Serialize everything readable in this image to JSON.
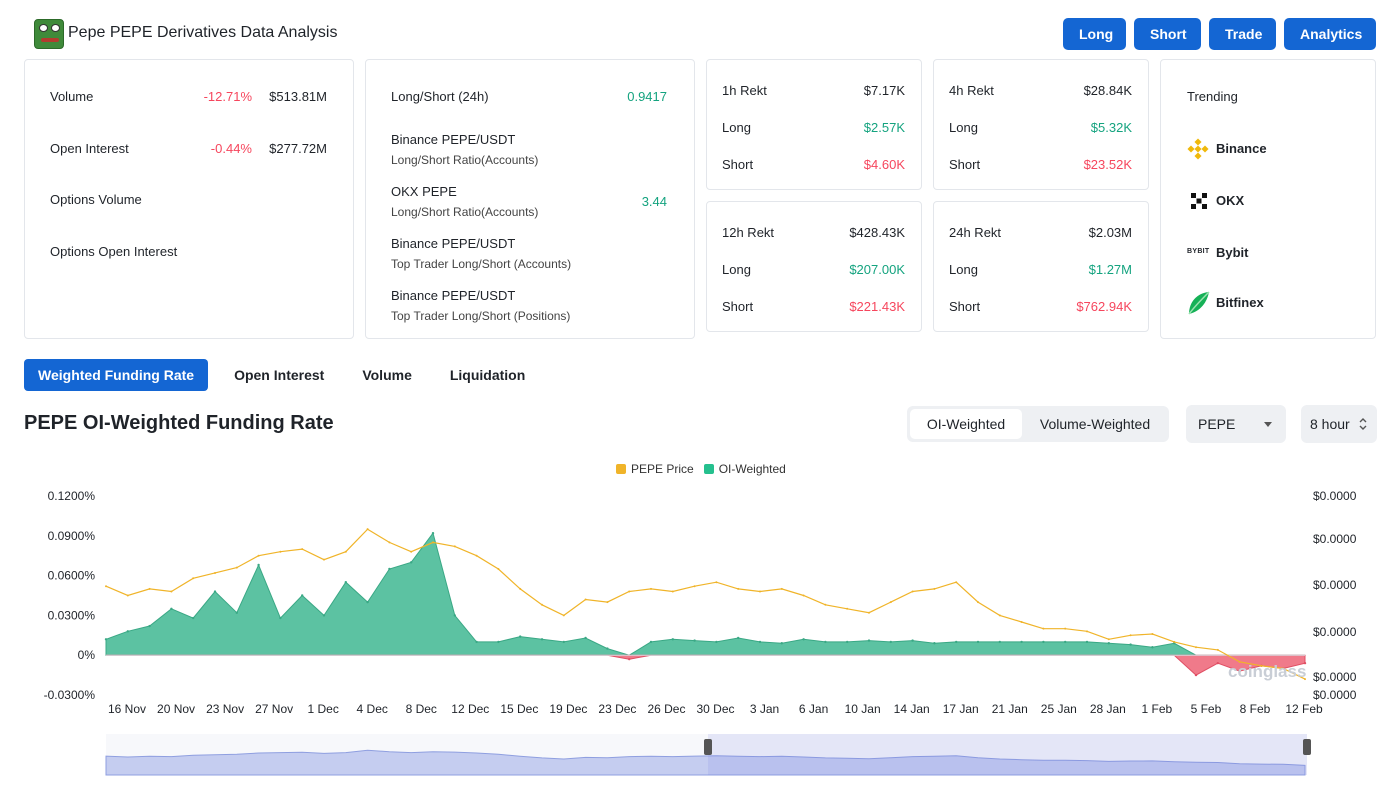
{
  "header": {
    "title": "Pepe PEPE Derivatives Data Analysis",
    "buttons": [
      "Long",
      "Short",
      "Trade",
      "Analytics"
    ]
  },
  "stats_card": {
    "rows": [
      {
        "label": "Volume",
        "change": "-12.71%",
        "value": "$513.81M"
      },
      {
        "label": "Open Interest",
        "change": "-0.44%",
        "value": "$277.72M"
      },
      {
        "label": "Options Volume",
        "change": "",
        "value": ""
      },
      {
        "label": "Options Open Interest",
        "change": "",
        "value": ""
      }
    ]
  },
  "ratio_card": {
    "rows": [
      {
        "line1": "Long/Short (24h)",
        "line2": "",
        "value": "0.9417"
      },
      {
        "line1": "Binance PEPE/USDT",
        "line2": "Long/Short Ratio(Accounts)",
        "value": ""
      },
      {
        "line1": "OKX PEPE",
        "line2": "Long/Short Ratio(Accounts)",
        "value": "3.44"
      },
      {
        "line1": "Binance PEPE/USDT",
        "line2": "Top Trader Long/Short (Accounts)",
        "value": ""
      },
      {
        "line1": "Binance PEPE/USDT",
        "line2": "Top Trader Long/Short (Positions)",
        "value": ""
      }
    ]
  },
  "rekt": [
    {
      "title": "1h Rekt",
      "total": "$7.17K",
      "long_label": "Long",
      "long": "$2.57K",
      "short_label": "Short",
      "short": "$4.60K"
    },
    {
      "title": "4h Rekt",
      "total": "$28.84K",
      "long_label": "Long",
      "long": "$5.32K",
      "short_label": "Short",
      "short": "$23.52K"
    },
    {
      "title": "12h Rekt",
      "total": "$428.43K",
      "long_label": "Long",
      "long": "$207.00K",
      "short_label": "Short",
      "short": "$221.43K"
    },
    {
      "title": "24h Rekt",
      "total": "$2.03M",
      "long_label": "Long",
      "long": "$1.27M",
      "short_label": "Short",
      "short": "$762.94K"
    }
  ],
  "trending": {
    "title": "Trending",
    "items": [
      {
        "name": "Binance",
        "icon": "binance-icon"
      },
      {
        "name": "OKX",
        "icon": "okx-icon"
      },
      {
        "name": "Bybit",
        "icon": "bybit-icon",
        "icon_text": "BYBIT"
      },
      {
        "name": "Bitfinex",
        "icon": "bitfinex-icon"
      }
    ]
  },
  "tabs": [
    "Weighted Funding Rate",
    "Open Interest",
    "Volume",
    "Liquidation"
  ],
  "chart_section": {
    "title": "PEPE OI-Weighted Funding Rate",
    "segment": [
      "OI-Weighted",
      "Volume-Weighted"
    ],
    "coin_select": "PEPE",
    "interval_select": "8 hour",
    "watermark": "coinglass"
  },
  "colors": {
    "accent": "#1466d3",
    "positive": "#14a37f",
    "negative": "#f6465d",
    "price_line": "#f0b429",
    "oi_fill": "#3fb68b"
  },
  "chart_data": {
    "type": "area",
    "title": "",
    "legend": [
      "PEPE Price",
      "OI-Weighted"
    ],
    "legend_position": "top-center",
    "x_ticks": [
      "16 Nov",
      "20 Nov",
      "23 Nov",
      "27 Nov",
      "1 Dec",
      "4 Dec",
      "8 Dec",
      "12 Dec",
      "15 Dec",
      "19 Dec",
      "23 Dec",
      "26 Dec",
      "30 Dec",
      "3 Jan",
      "6 Jan",
      "10 Jan",
      "14 Jan",
      "17 Jan",
      "21 Jan",
      "25 Jan",
      "28 Jan",
      "1 Feb",
      "5 Feb",
      "8 Feb",
      "12 Feb"
    ],
    "y_left_ticks": [
      "0.1200%",
      "0.0900%",
      "0.0600%",
      "0.0300%",
      "0%",
      "-0.0300%"
    ],
    "y_left_range": [
      -0.03,
      0.12
    ],
    "y_right_ticks": [
      "$0.0000",
      "$0.0000",
      "$0.0000",
      "$0.0000",
      "$0.0000",
      "$0.0000"
    ],
    "grid": false,
    "series": [
      {
        "name": "OI-Weighted",
        "values": [
          0.012,
          0.018,
          0.022,
          0.035,
          0.028,
          0.048,
          0.032,
          0.068,
          0.028,
          0.045,
          0.03,
          0.055,
          0.04,
          0.065,
          0.07,
          0.092,
          0.03,
          0.01,
          0.01,
          0.014,
          0.012,
          0.01,
          0.013,
          0.005,
          -0.003,
          0.01,
          0.012,
          0.011,
          0.01,
          0.013,
          0.01,
          0.009,
          0.012,
          0.01,
          0.01,
          0.011,
          0.01,
          0.011,
          0.009,
          0.01,
          0.01,
          0.01,
          0.01,
          0.01,
          0.01,
          0.01,
          0.009,
          0.008,
          0.006,
          0.009,
          -0.015,
          -0.006,
          -0.012,
          -0.008,
          -0.01,
          -0.006
        ]
      },
      {
        "name": "PEPE Price",
        "values": [
          0.052,
          0.045,
          0.05,
          0.048,
          0.058,
          0.062,
          0.066,
          0.075,
          0.078,
          0.08,
          0.072,
          0.078,
          0.095,
          0.085,
          0.078,
          0.085,
          0.082,
          0.075,
          0.065,
          0.05,
          0.038,
          0.03,
          0.042,
          0.04,
          0.048,
          0.05,
          0.048,
          0.052,
          0.055,
          0.05,
          0.048,
          0.05,
          0.045,
          0.038,
          0.035,
          0.032,
          0.04,
          0.048,
          0.05,
          0.055,
          0.04,
          0.03,
          0.025,
          0.02,
          0.02,
          0.018,
          0.012,
          0.015,
          0.016,
          0.01,
          0.006,
          0.004,
          -0.005,
          -0.008,
          -0.01,
          -0.018
        ]
      }
    ]
  }
}
